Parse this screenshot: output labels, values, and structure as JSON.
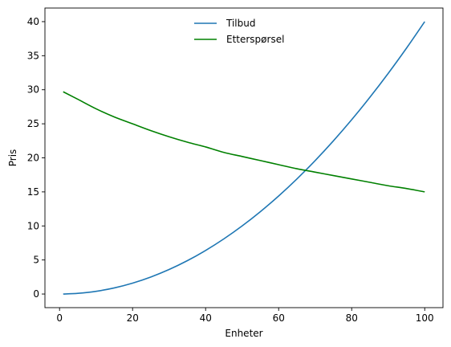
{
  "chart_data": {
    "type": "line",
    "title": "",
    "xlabel": "Enheter",
    "ylabel": "Pris",
    "xlim": [
      -4,
      105
    ],
    "ylim": [
      -2,
      42
    ],
    "x_ticks": [
      0,
      20,
      40,
      60,
      80,
      100
    ],
    "y_ticks": [
      0,
      5,
      10,
      15,
      20,
      25,
      30,
      35,
      40
    ],
    "grid": false,
    "legend_position": "top-center",
    "series": [
      {
        "name": "Tilbud",
        "color": "#1f77b4",
        "x": [
          1,
          5,
          10,
          15,
          20,
          25,
          30,
          35,
          40,
          45,
          50,
          55,
          60,
          65,
          70,
          75,
          80,
          85,
          90,
          95,
          100
        ],
        "values": [
          0.0,
          0.1,
          0.4,
          0.9,
          1.6,
          2.5,
          3.6,
          4.9,
          6.4,
          8.1,
          10.0,
          12.1,
          14.4,
          16.9,
          19.6,
          22.5,
          25.6,
          28.9,
          32.4,
          36.1,
          40.0
        ]
      },
      {
        "name": "Etterspørsel",
        "color": "#008000",
        "x": [
          1,
          5,
          10,
          15,
          20,
          25,
          30,
          35,
          40,
          45,
          50,
          55,
          60,
          65,
          70,
          75,
          80,
          85,
          90,
          95,
          100
        ],
        "values": [
          29.7,
          28.6,
          27.2,
          26.0,
          25.0,
          24.0,
          23.1,
          22.3,
          21.6,
          20.8,
          20.2,
          19.6,
          19.0,
          18.4,
          17.9,
          17.4,
          16.9,
          16.4,
          15.9,
          15.5,
          15.0
        ]
      }
    ]
  }
}
